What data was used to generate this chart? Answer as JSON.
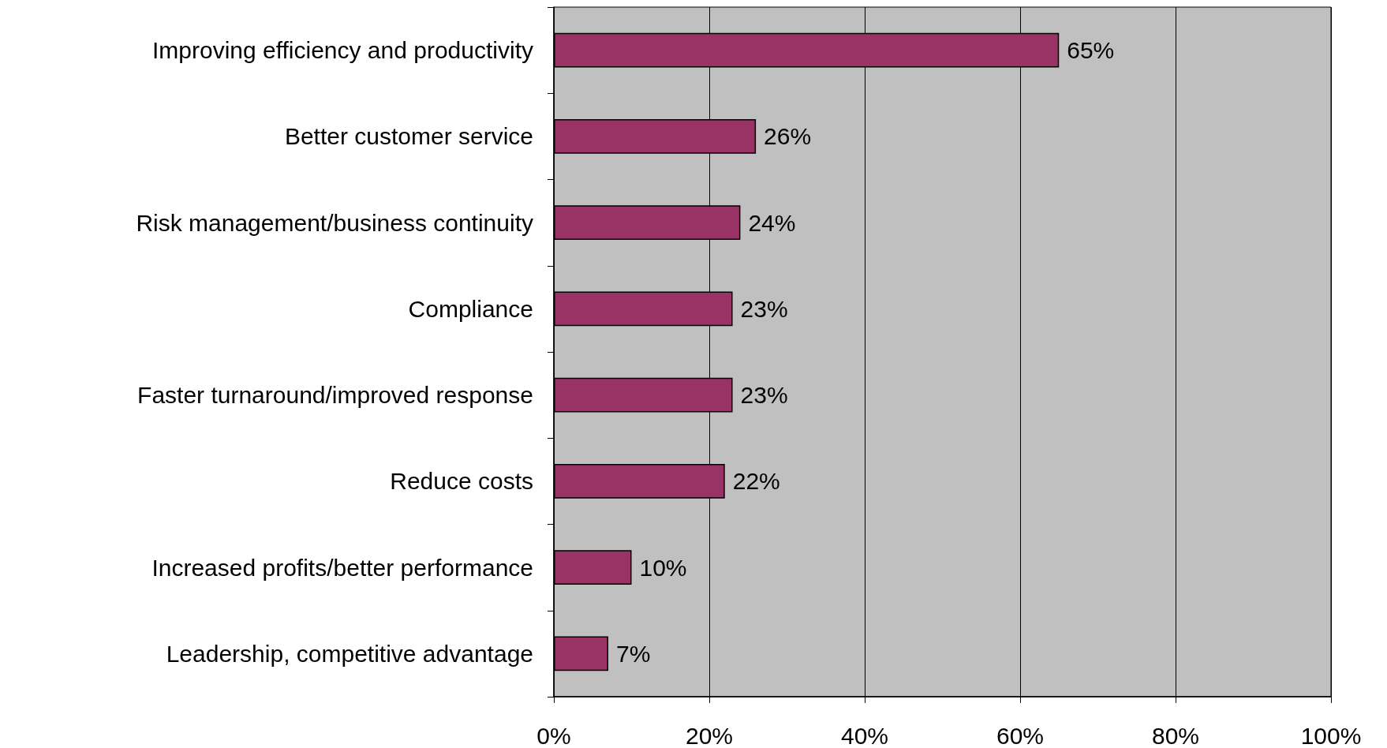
{
  "chart_data": {
    "type": "bar",
    "orientation": "horizontal",
    "categories": [
      "Improving efficiency and productivity",
      "Better customer service",
      "Risk management/business continuity",
      "Compliance",
      "Faster turnaround/improved response",
      "Reduce costs",
      "Increased profits/better performance",
      "Leadership, competitive advantage"
    ],
    "values": [
      65,
      26,
      24,
      23,
      23,
      22,
      10,
      7
    ],
    "color": "#993366",
    "value_labels": [
      "65%",
      "26%",
      "24%",
      "23%",
      "23%",
      "22%",
      "10%",
      "7%"
    ],
    "xlim": [
      0,
      100
    ],
    "xticks": [
      {
        "value": 0,
        "label": "0%"
      },
      {
        "value": 20,
        "label": "20%"
      },
      {
        "value": 40,
        "label": "40%"
      },
      {
        "value": 60,
        "label": "60%"
      },
      {
        "value": 80,
        "label": "80%"
      },
      {
        "value": 100,
        "label": "100%"
      }
    ],
    "grid": "x"
  }
}
